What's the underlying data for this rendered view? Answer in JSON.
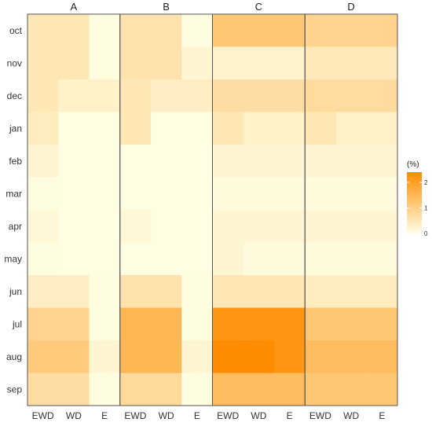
{
  "chart_data": {
    "type": "heatmap",
    "facets": [
      "A",
      "B",
      "C",
      "D"
    ],
    "columns": [
      "EWD",
      "WD",
      "E"
    ],
    "rows": [
      "oct",
      "nov",
      "dec",
      "jan",
      "feb",
      "mar",
      "apr",
      "may",
      "jun",
      "jul",
      "aug",
      "sep"
    ],
    "legend": {
      "title": "(%)",
      "ticks": [
        0,
        1,
        2
      ],
      "min": 0,
      "max": 2.4,
      "low_color": "#FFFFE5",
      "high_color": "#FF8C00"
    },
    "values": {
      "A": [
        [
          0.5,
          0.5,
          0.05
        ],
        [
          0.5,
          0.5,
          0.05
        ],
        [
          0.5,
          0.3,
          0.3
        ],
        [
          0.4,
          0.03,
          0.03
        ],
        [
          0.2,
          0.03,
          0.03
        ],
        [
          0.05,
          0.03,
          0.03
        ],
        [
          0.15,
          0.03,
          0.03
        ],
        [
          0.05,
          0.03,
          0.03
        ],
        [
          0.35,
          0.35,
          0.05
        ],
        [
          0.9,
          0.9,
          0.05
        ],
        [
          1.1,
          1.1,
          0.2
        ],
        [
          0.7,
          0.7,
          0.05
        ]
      ],
      "B": [
        [
          0.6,
          0.6,
          0.05
        ],
        [
          0.6,
          0.6,
          0.2
        ],
        [
          0.5,
          0.35,
          0.35
        ],
        [
          0.5,
          0.03,
          0.03
        ],
        [
          0.03,
          0.03,
          0.03
        ],
        [
          0.03,
          0.03,
          0.03
        ],
        [
          0.15,
          0.03,
          0.03
        ],
        [
          0.03,
          0.03,
          0.03
        ],
        [
          0.6,
          0.6,
          0.05
        ],
        [
          1.5,
          1.5,
          0.05
        ],
        [
          1.5,
          1.5,
          0.2
        ],
        [
          0.8,
          0.8,
          0.05
        ]
      ],
      "C": [
        [
          1.2,
          1.2,
          1.2
        ],
        [
          0.25,
          0.25,
          0.25
        ],
        [
          0.7,
          0.7,
          0.7
        ],
        [
          0.5,
          0.3,
          0.3
        ],
        [
          0.2,
          0.2,
          0.2
        ],
        [
          0.1,
          0.1,
          0.1
        ],
        [
          0.2,
          0.2,
          0.2
        ],
        [
          0.2,
          0.1,
          0.1
        ],
        [
          0.5,
          0.5,
          0.5
        ],
        [
          2.2,
          2.2,
          2.2
        ],
        [
          2.5,
          2.5,
          2.2
        ],
        [
          1.4,
          1.4,
          1.4
        ]
      ],
      "D": [
        [
          0.9,
          0.9,
          0.9
        ],
        [
          0.45,
          0.45,
          0.45
        ],
        [
          0.75,
          0.75,
          0.75
        ],
        [
          0.5,
          0.3,
          0.3
        ],
        [
          0.2,
          0.2,
          0.2
        ],
        [
          0.1,
          0.1,
          0.1
        ],
        [
          0.2,
          0.2,
          0.2
        ],
        [
          0.1,
          0.1,
          0.1
        ],
        [
          0.4,
          0.4,
          0.4
        ],
        [
          1.2,
          1.2,
          1.2
        ],
        [
          1.4,
          1.4,
          1.4
        ],
        [
          1.2,
          1.2,
          1.2
        ]
      ]
    }
  }
}
